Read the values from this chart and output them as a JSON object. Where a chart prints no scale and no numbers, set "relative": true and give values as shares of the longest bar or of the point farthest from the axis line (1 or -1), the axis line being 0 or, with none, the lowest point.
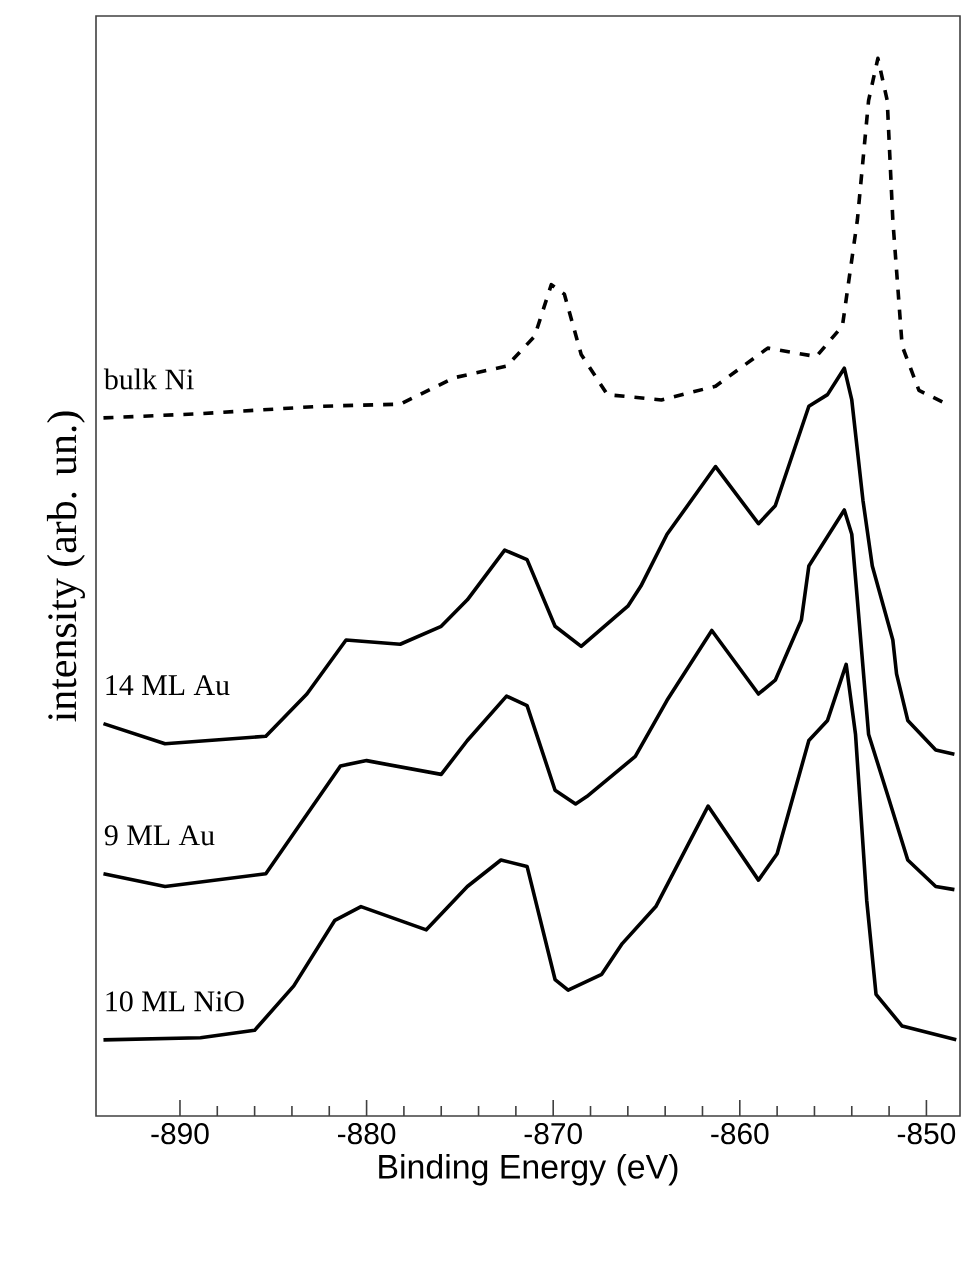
{
  "chart_data": {
    "type": "line",
    "relative": true,
    "xlabel": "Binding Energy (eV)",
    "ylabel": "intensity (arb. un.)",
    "xlim": [
      -894.5,
      -848.2
    ],
    "xticks": [
      -890,
      {
        "value": -888,
        "label": null
      },
      {
        "value": -886,
        "label": null
      },
      {
        "value": -884,
        "label": null
      },
      {
        "value": -882,
        "label": null
      },
      -880,
      {
        "value": -878,
        "label": null
      },
      {
        "value": -876,
        "label": null
      },
      {
        "value": -874,
        "label": null
      },
      {
        "value": -872,
        "label": null
      },
      -870,
      {
        "value": -868,
        "label": null
      },
      {
        "value": -866,
        "label": null
      },
      {
        "value": -864,
        "label": null
      },
      {
        "value": -862,
        "label": null
      },
      -860,
      {
        "value": -858,
        "label": null
      },
      {
        "value": -856,
        "label": null
      },
      {
        "value": -854,
        "label": null
      },
      {
        "value": -852,
        "label": null
      },
      -850
    ],
    "tick_labels": "x",
    "grid": false,
    "legend": false,
    "marker": "none",
    "series": [
      {
        "name": "bulk Ni",
        "color": "#000000",
        "line_style": "dashed",
        "x": [
          -894.1,
          -888.9,
          -882.5,
          -878.2,
          -875.3,
          -872.5,
          -871.0,
          -870.1,
          -869.4,
          -868.5,
          -867.1,
          -864.2,
          -861.3,
          -858.5,
          -855.9,
          -854.5,
          -853.7,
          -853.1,
          -852.6,
          -852.1,
          -851.8,
          -851.3,
          -850.4,
          -848.9
        ],
        "values": [
          0.66,
          0.664,
          0.671,
          0.673,
          0.698,
          0.709,
          0.737,
          0.786,
          0.777,
          0.72,
          0.682,
          0.677,
          0.69,
          0.726,
          0.718,
          0.747,
          0.847,
          0.96,
          1.0,
          0.96,
          0.847,
          0.728,
          0.686,
          0.673
        ]
      },
      {
        "name": "14 ML Au",
        "color": "#000000",
        "line_style": "solid",
        "x": [
          -894.1,
          -890.8,
          -885.4,
          -883.2,
          -881.1,
          -878.2,
          -876.0,
          -874.6,
          -872.6,
          -871.4,
          -869.9,
          -868.5,
          -866.0,
          -865.3,
          -863.9,
          -861.3,
          -859.0,
          -858.1,
          -856.3,
          -855.3,
          -854.4,
          -854.0,
          -853.4,
          -852.9,
          -851.8,
          -851.6,
          -851.0,
          -849.5,
          -848.5
        ],
        "values": [
          0.371,
          0.352,
          0.359,
          0.399,
          0.45,
          0.446,
          0.463,
          0.488,
          0.535,
          0.526,
          0.463,
          0.444,
          0.482,
          0.501,
          0.55,
          0.614,
          0.56,
          0.577,
          0.671,
          0.682,
          0.707,
          0.677,
          0.582,
          0.52,
          0.45,
          0.418,
          0.374,
          0.346,
          0.342
        ]
      },
      {
        "name": "9 ML Au",
        "color": "#000000",
        "line_style": "solid",
        "x": [
          -894.1,
          -890.8,
          -885.4,
          -883.2,
          -881.4,
          -880.0,
          -876.0,
          -874.6,
          -872.5,
          -871.4,
          -869.9,
          -868.8,
          -868.2,
          -865.6,
          -863.9,
          -861.5,
          -859.0,
          -858.1,
          -856.7,
          -856.3,
          -854.4,
          -854.0,
          -853.7,
          -853.1,
          -852.0,
          -851.0,
          -849.5,
          -848.5
        ],
        "values": [
          0.229,
          0.217,
          0.229,
          0.285,
          0.331,
          0.336,
          0.323,
          0.355,
          0.397,
          0.388,
          0.308,
          0.295,
          0.302,
          0.34,
          0.393,
          0.459,
          0.399,
          0.412,
          0.469,
          0.52,
          0.573,
          0.55,
          0.488,
          0.361,
          0.299,
          0.242,
          0.217,
          0.214
        ]
      },
      {
        "name": "10 ML NiO",
        "color": "#000000",
        "line_style": "solid",
        "x": [
          -894.1,
          -888.9,
          -886.0,
          -883.9,
          -881.7,
          -880.3,
          -876.8,
          -874.6,
          -872.8,
          -871.4,
          -869.9,
          -869.2,
          -867.4,
          -866.3,
          -864.5,
          -861.7,
          -859.0,
          -858.0,
          -856.3,
          -855.3,
          -854.3,
          -853.8,
          -853.2,
          -852.7,
          -851.3,
          -848.4
        ],
        "values": [
          0.072,
          0.074,
          0.081,
          0.123,
          0.185,
          0.198,
          0.176,
          0.217,
          0.242,
          0.236,
          0.129,
          0.119,
          0.134,
          0.163,
          0.198,
          0.293,
          0.223,
          0.248,
          0.355,
          0.374,
          0.427,
          0.361,
          0.204,
          0.115,
          0.085,
          0.072
        ]
      }
    ]
  }
}
